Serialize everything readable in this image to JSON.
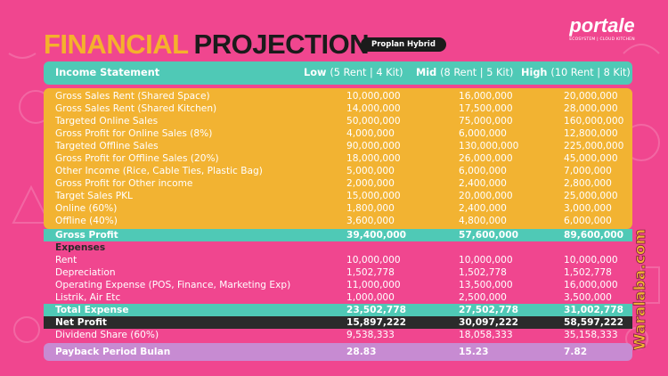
{
  "title": {
    "part1": "FINANCIAL",
    "part2": "PROJECTION"
  },
  "badge": "Proplan Hybrid",
  "logo": {
    "word": "portale",
    "tagline": "ECOSYSTEM | CLOUD KITCHEN"
  },
  "header": {
    "label": "Income Statement",
    "low": "Low",
    "low_sub": "(5 Rent | 4 Kit)",
    "mid": "Mid",
    "mid_sub": "(8 Rent | 5 Kit)",
    "high": "High",
    "high_sub": "(10 Rent | 8 Kit)"
  },
  "income_rows": [
    {
      "label": "Gross Sales Rent (Shared Space)",
      "low": "10,000,000",
      "mid": "16,000,000",
      "high": "20,000,000"
    },
    {
      "label": "Gross Sales Rent (Shared Kitchen)",
      "low": "14,000,000",
      "mid": "17,500,000",
      "high": "28,000,000"
    },
    {
      "label": "Targeted Online Sales",
      "low": "50,000,000",
      "mid": "75,000,000",
      "high": "160,000,000"
    },
    {
      "label": "Gross Profit for Online Sales (8%)",
      "low": "4,000,000",
      "mid": "6,000,000",
      "high": "12,800,000"
    },
    {
      "label": "Targeted Offline Sales",
      "low": "90,000,000",
      "mid": "130,000,000",
      "high": "225,000,000"
    },
    {
      "label": "Gross Profit for Offline Sales (20%)",
      "low": "18,000,000",
      "mid": "26,000,000",
      "high": "45,000,000"
    },
    {
      "label": "Other Income (Rice, Cable Ties, Plastic Bag)",
      "low": "5,000,000",
      "mid": "6,000,000",
      "high": "7,000,000"
    },
    {
      "label": "Gross Profit for Other income",
      "low": "2,000,000",
      "mid": "2,400,000",
      "high": "2,800,000"
    },
    {
      "label": "Target Sales PKL",
      "low": "15,000,000",
      "mid": "20,000,000",
      "high": "25,000,000"
    },
    {
      "label": "Online (60%)",
      "low": "1,800,000",
      "mid": "2,400,000",
      "high": "3,000,000"
    },
    {
      "label": "Offline (40%)",
      "low": "3,600,000",
      "mid": "4,800,000",
      "high": "6,000,000"
    }
  ],
  "gross_profit": {
    "label": "Gross Profit",
    "low": "39,400,000",
    "mid": "57,600,000",
    "high": "89,600,000"
  },
  "expenses_heading": "Expenses",
  "expense_rows": [
    {
      "label": "Rent",
      "low": "10,000,000",
      "mid": "10,000,000",
      "high": "10,000,000"
    },
    {
      "label": "Depreciation",
      "low": "1,502,778",
      "mid": "1,502,778",
      "high": "1,502,778"
    },
    {
      "label": "Operating Expense (POS, Finance, Marketing  Exp)",
      "low": "11,000,000",
      "mid": "13,500,000",
      "high": "16,000,000"
    },
    {
      "label": "Listrik, Air Etc",
      "low": "1,000,000",
      "mid": "2,500,000",
      "high": "3,500,000"
    }
  ],
  "total_expense": {
    "label": "Total Expense",
    "low": "23,502,778",
    "mid": "27,502,778",
    "high": "31,002,778"
  },
  "net_profit": {
    "label": "Net Profit",
    "low": "15,897,222",
    "mid": "30,097,222",
    "high": "58,597,222"
  },
  "dividend": {
    "label": "Dividend Share (60%)",
    "low": "9,538,333",
    "mid": "18,058,333",
    "high": "35,158,333"
  },
  "payback": {
    "label": "Payback Period Bulan",
    "low": "28.83",
    "mid": "15.23",
    "high": "7.82"
  },
  "watermark": "Waralaba.com",
  "colors": {
    "bg": "#f0468f",
    "yellow": "#f2b332",
    "teal": "#4fc9b6",
    "dark": "#2b2b2b",
    "purple": "#c78bd2"
  }
}
